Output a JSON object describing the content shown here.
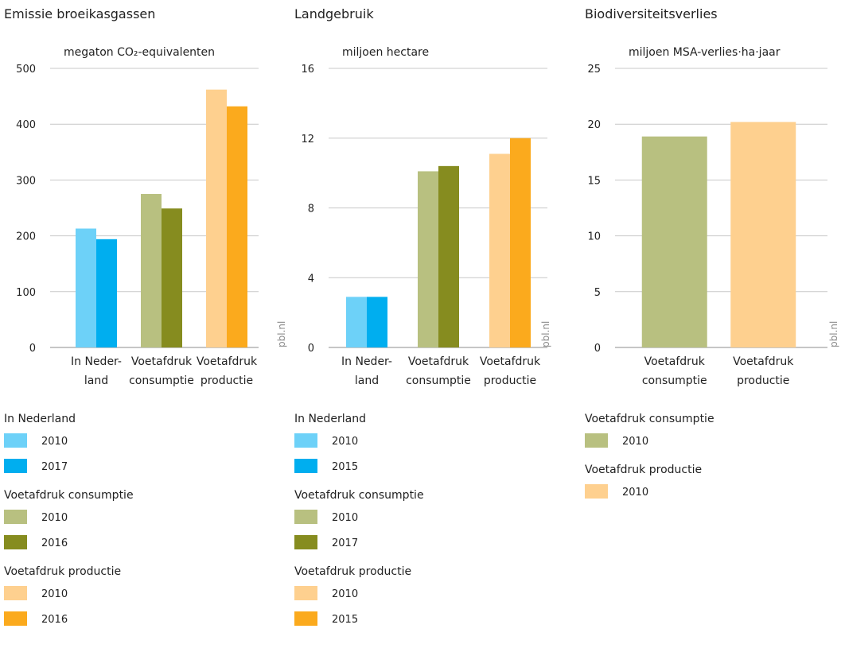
{
  "colors": {
    "nl_2010": "#6dd1f8",
    "nl_late": "#00aeef",
    "cons_2010": "#b8c080",
    "cons_late": "#868c1f",
    "prod_2010": "#fed08f",
    "prod_late": "#fbaa1d",
    "grid": "#c8c8c8",
    "axis": "#8c8c8c"
  },
  "chart_data": [
    {
      "type": "bar",
      "title": "Emissie broeikasgassen",
      "ylabel": "megaton CO₂-equivalenten",
      "ylim": [
        0,
        500
      ],
      "yticks": [
        0,
        100,
        200,
        300,
        400,
        500
      ],
      "source": "pbl.nl",
      "grid": true,
      "categories": [
        {
          "lines": [
            "In Neder-",
            "land"
          ],
          "bars": [
            {
              "color_key": "nl_2010",
              "value": 213
            },
            {
              "color_key": "nl_late",
              "value": 194
            }
          ]
        },
        {
          "lines": [
            "Voetafdruk",
            "consumptie"
          ],
          "bars": [
            {
              "color_key": "cons_2010",
              "value": 275
            },
            {
              "color_key": "cons_late",
              "value": 249
            }
          ]
        },
        {
          "lines": [
            "Voetafdruk",
            "productie"
          ],
          "bars": [
            {
              "color_key": "prod_2010",
              "value": 462
            },
            {
              "color_key": "prod_late",
              "value": 432
            }
          ]
        }
      ],
      "legend": [
        {
          "group": "In Nederland",
          "items": [
            {
              "color_key": "nl_2010",
              "label": "2010"
            },
            {
              "color_key": "nl_late",
              "label": "2017"
            }
          ]
        },
        {
          "group": "Voetafdruk consumptie",
          "items": [
            {
              "color_key": "cons_2010",
              "label": "2010"
            },
            {
              "color_key": "cons_late",
              "label": "2016"
            }
          ]
        },
        {
          "group": "Voetafdruk productie",
          "items": [
            {
              "color_key": "prod_2010",
              "label": "2010"
            },
            {
              "color_key": "prod_late",
              "label": "2016"
            }
          ]
        }
      ]
    },
    {
      "type": "bar",
      "title": "Landgebruik",
      "ylabel": "miljoen hectare",
      "ylim": [
        0,
        16
      ],
      "yticks": [
        0,
        4,
        8,
        12,
        16
      ],
      "source": "pbl.nl",
      "grid": true,
      "categories": [
        {
          "lines": [
            "In Neder-",
            "land"
          ],
          "bars": [
            {
              "color_key": "nl_2010",
              "value": 2.9
            },
            {
              "color_key": "nl_late",
              "value": 2.9
            }
          ]
        },
        {
          "lines": [
            "Voetafdruk",
            "consumptie"
          ],
          "bars": [
            {
              "color_key": "cons_2010",
              "value": 10.1
            },
            {
              "color_key": "cons_late",
              "value": 10.4
            }
          ]
        },
        {
          "lines": [
            "Voetafdruk",
            "productie"
          ],
          "bars": [
            {
              "color_key": "prod_2010",
              "value": 11.1
            },
            {
              "color_key": "prod_late",
              "value": 12.0
            }
          ]
        }
      ],
      "legend": [
        {
          "group": "In Nederland",
          "items": [
            {
              "color_key": "nl_2010",
              "label": "2010"
            },
            {
              "color_key": "nl_late",
              "label": "2015"
            }
          ]
        },
        {
          "group": "Voetafdruk consumptie",
          "items": [
            {
              "color_key": "cons_2010",
              "label": "2010"
            },
            {
              "color_key": "cons_late",
              "label": "2017"
            }
          ]
        },
        {
          "group": "Voetafdruk productie",
          "items": [
            {
              "color_key": "prod_2010",
              "label": "2010"
            },
            {
              "color_key": "prod_late",
              "label": "2015"
            }
          ]
        }
      ]
    },
    {
      "type": "bar",
      "title": "Biodiversiteitsverlies",
      "ylabel": "miljoen MSA-verlies·ha·jaar",
      "ylim": [
        0,
        25
      ],
      "yticks": [
        0,
        5,
        10,
        15,
        20,
        25
      ],
      "source": "pbl.nl",
      "grid": true,
      "categories": [
        {
          "lines": [
            "Voetafdruk",
            "consumptie"
          ],
          "bars": [
            {
              "color_key": "cons_2010",
              "value": 18.9
            }
          ]
        },
        {
          "lines": [
            "Voetafdruk",
            "productie"
          ],
          "bars": [
            {
              "color_key": "prod_2010",
              "value": 20.2
            }
          ]
        }
      ],
      "legend": [
        {
          "group": "Voetafdruk consumptie",
          "items": [
            {
              "color_key": "cons_2010",
              "label": "2010"
            }
          ]
        },
        {
          "group": "Voetafdruk productie",
          "items": [
            {
              "color_key": "prod_2010",
              "label": "2010"
            }
          ]
        }
      ]
    }
  ]
}
